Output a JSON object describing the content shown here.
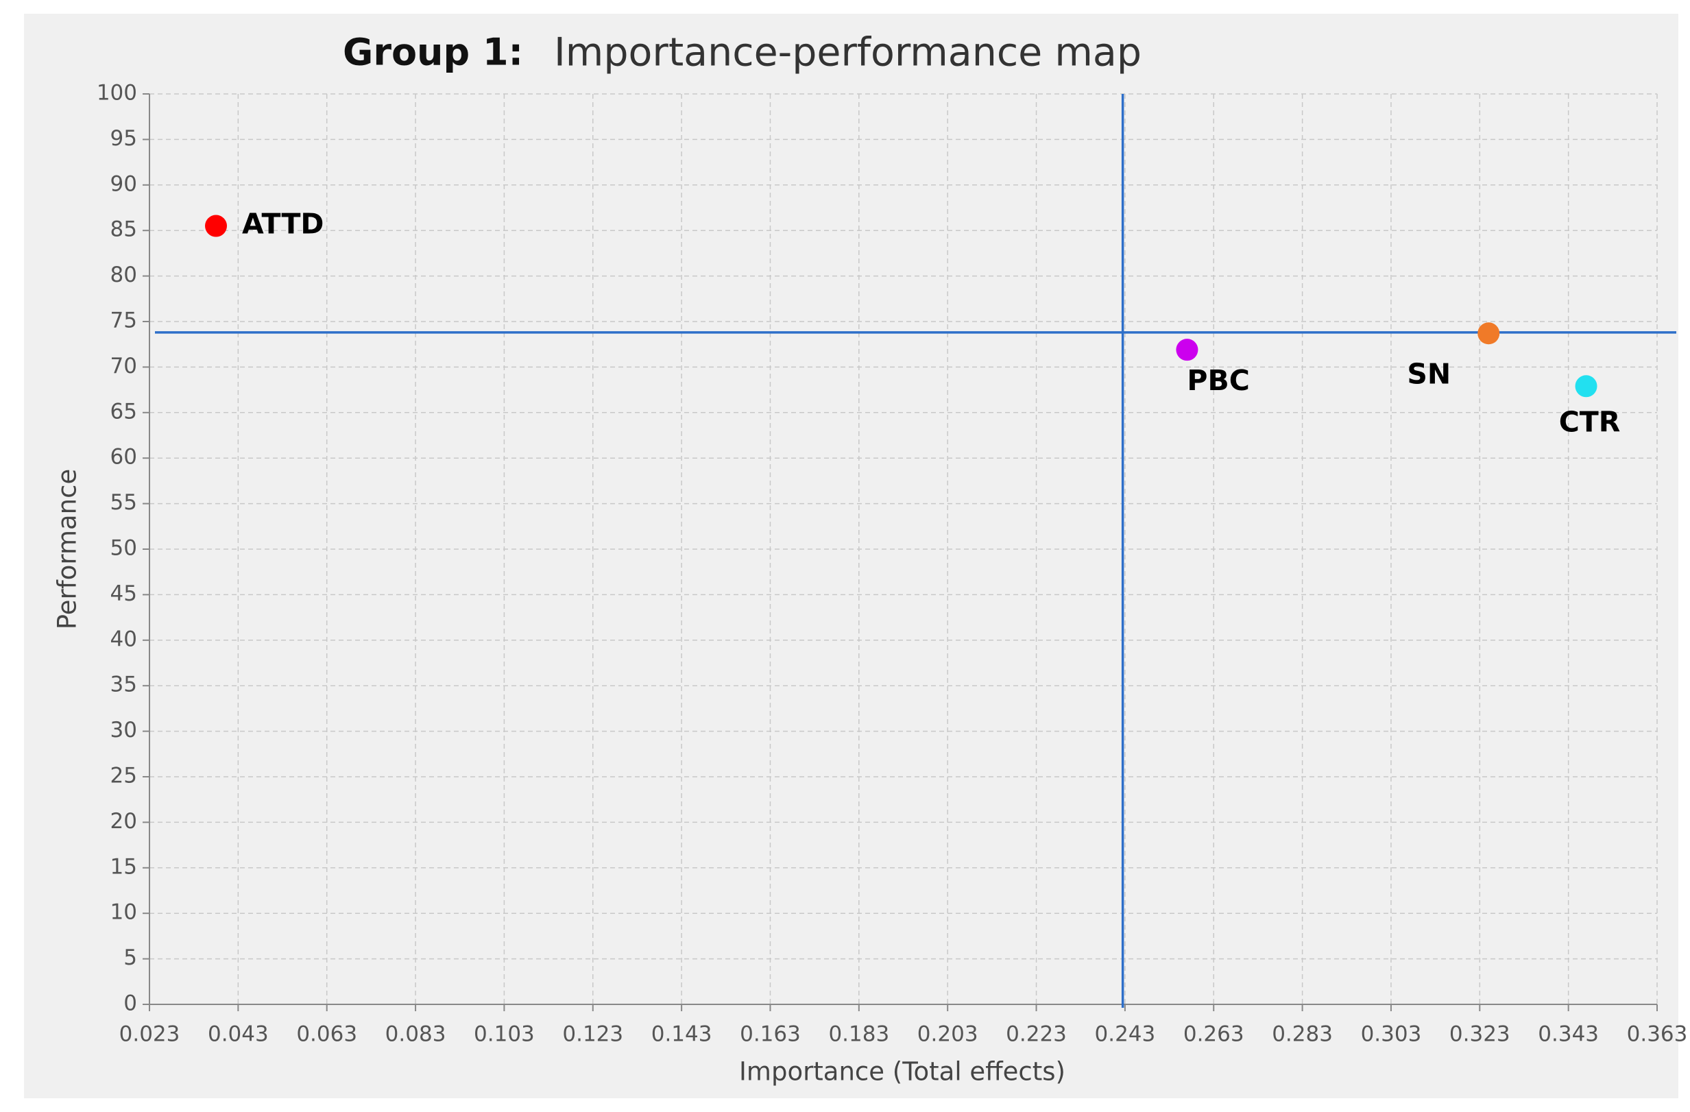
{
  "chart_data": {
    "type": "scatter",
    "group_label": "Group 1:",
    "title": "Importance-performance map",
    "x_label": "Importance (Total effects)",
    "y_label": "Performance",
    "xlim": [
      0.023,
      0.363
    ],
    "xticks": [
      0.023,
      0.043,
      0.063,
      0.083,
      0.103,
      0.123,
      0.143,
      0.163,
      0.183,
      0.203,
      0.223,
      0.243,
      0.263,
      0.283,
      0.303,
      0.323,
      0.343,
      0.363
    ],
    "ylim": [
      0,
      100
    ],
    "yticks": [
      0,
      5,
      10,
      15,
      20,
      25,
      30,
      35,
      40,
      45,
      50,
      55,
      60,
      65,
      70,
      75,
      80,
      85,
      90,
      95,
      100
    ],
    "grid": true,
    "reference_lines": {
      "x": 0.2425,
      "y": 73.8,
      "color": "#2e6fc9"
    },
    "points": [
      {
        "name": "ATTD",
        "x": 0.038,
        "y": 85.5,
        "color": "#ff0000"
      },
      {
        "name": "PBC",
        "x": 0.257,
        "y": 71.9,
        "color": "#cc00ee"
      },
      {
        "name": "SN",
        "x": 0.325,
        "y": 73.7,
        "color": "#f07a28"
      },
      {
        "name": "CTR",
        "x": 0.347,
        "y": 67.9,
        "color": "#22e0f0"
      }
    ]
  }
}
